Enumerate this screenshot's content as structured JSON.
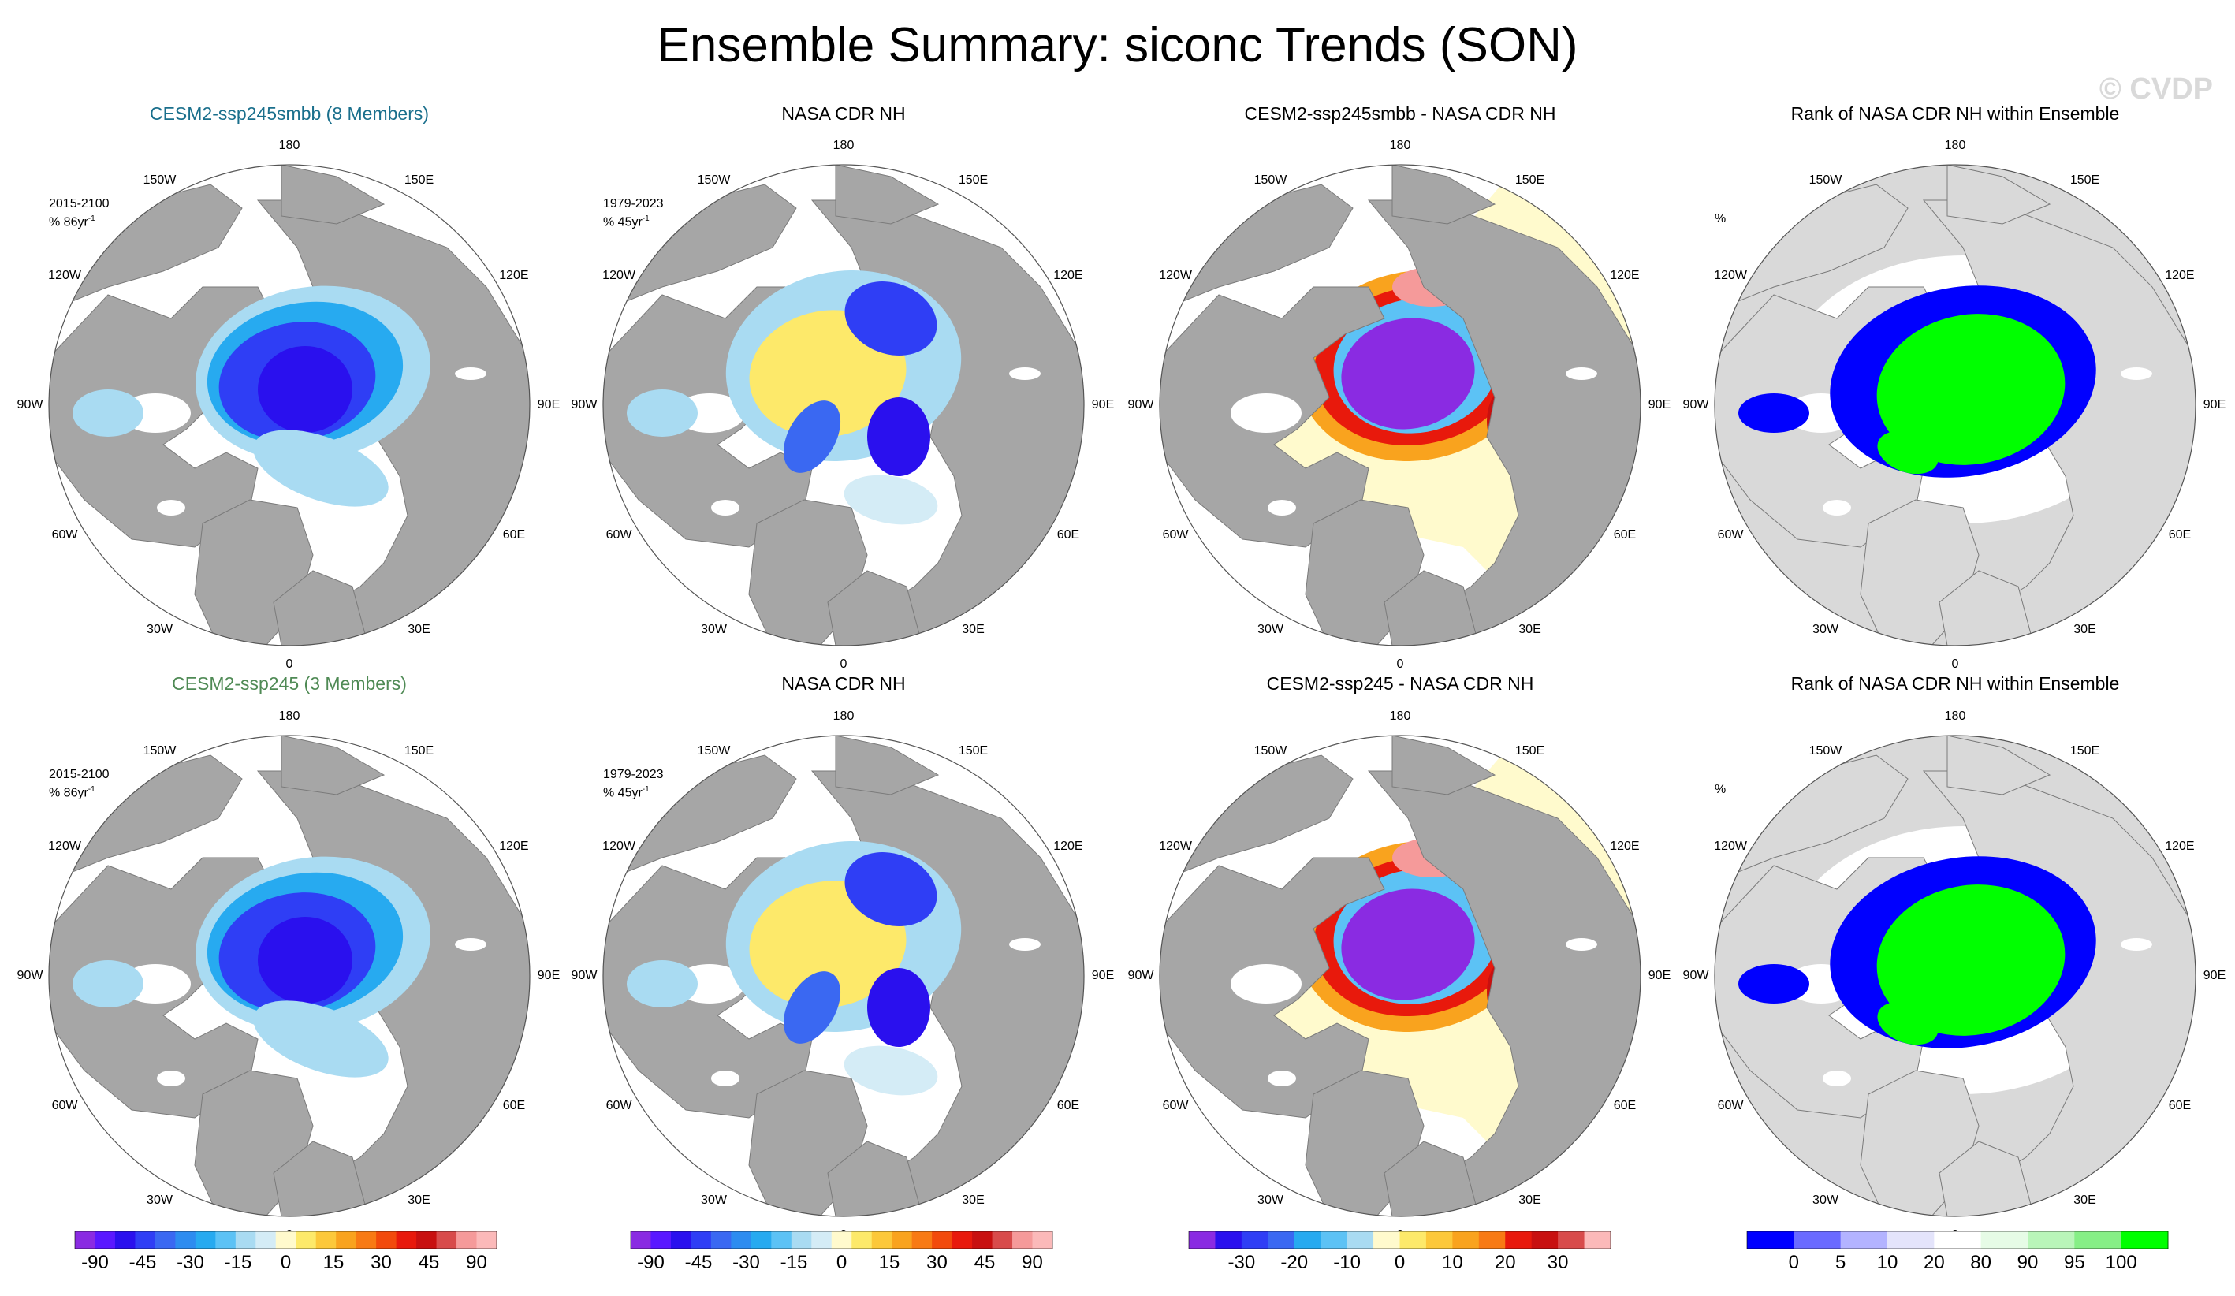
{
  "title": "Ensemble Summary: siconc Trends (SON)",
  "watermark": "© CVDP",
  "lon_labels": [
    "180",
    "150E",
    "120E",
    "90E",
    "60E",
    "30E",
    "0",
    "30W",
    "60W",
    "90W",
    "120W",
    "150W"
  ],
  "colors": {
    "land": "#a6a6a6",
    "rank_land": "#d9d9d9",
    "diverging": [
      "#8a2be2",
      "#5a18ff",
      "#2a10ee",
      "#2f3ef5",
      "#3a68f2",
      "#2d8cf0",
      "#27aaf0",
      "#5cc2f5",
      "#a9dbf2",
      "#d4ecf6",
      "#fffacd",
      "#fde96a",
      "#fcc83a",
      "#f9a31e",
      "#f87a14",
      "#f24a0c",
      "#e8190c",
      "#c81010",
      "#d84b4b",
      "#f59a9a",
      "#fbb9b9"
    ],
    "rank": [
      "#0000ff",
      "#6a6aff",
      "#b3b3ff",
      "#e4e4fb",
      "#ffffff",
      "#e6fbe6",
      "#b9f5b9",
      "#86ef86",
      "#00ff00"
    ]
  },
  "rows": [
    {
      "panels": [
        {
          "title": "CESM2-ssp245smbb (8 Members)",
          "title_color": "#1a6f8c",
          "kind": "model",
          "period": "2015-2100",
          "units": "% 86yr",
          "units_exp": "-1"
        },
        {
          "title": "NASA CDR NH",
          "title_color": "#000000",
          "kind": "obs",
          "period": "1979-2023",
          "units": "% 45yr",
          "units_exp": "-1"
        },
        {
          "title": "CESM2-ssp245smbb - NASA CDR NH",
          "title_color": "#000000",
          "kind": "diff"
        },
        {
          "title": "Rank of NASA CDR NH within Ensemble",
          "title_color": "#000000",
          "kind": "rank",
          "units": "%"
        }
      ]
    },
    {
      "panels": [
        {
          "title": "CESM2-ssp245 (3 Members)",
          "title_color": "#4f8a55",
          "kind": "model",
          "period": "2015-2100",
          "units": "% 86yr",
          "units_exp": "-1"
        },
        {
          "title": "NASA CDR NH",
          "title_color": "#000000",
          "kind": "obs",
          "period": "1979-2023",
          "units": "% 45yr",
          "units_exp": "-1"
        },
        {
          "title": "CESM2-ssp245 - NASA CDR NH",
          "title_color": "#000000",
          "kind": "diff"
        },
        {
          "title": "Rank of NASA CDR NH within Ensemble",
          "title_color": "#000000",
          "kind": "rank",
          "units": "%"
        }
      ]
    }
  ],
  "colorbars": [
    {
      "kind": "trend",
      "ticks": [
        "-90",
        "-45",
        "-30",
        "-15",
        "0",
        "15",
        "30",
        "45",
        "90"
      ]
    },
    {
      "kind": "trend",
      "ticks": [
        "-90",
        "-45",
        "-30",
        "-15",
        "0",
        "15",
        "30",
        "45",
        "90"
      ]
    },
    {
      "kind": "diff",
      "ticks": [
        "-30",
        "-20",
        "-10",
        "0",
        "10",
        "20",
        "30"
      ]
    },
    {
      "kind": "rank",
      "ticks": [
        "0",
        "5",
        "10",
        "20",
        "80",
        "90",
        "95",
        "100"
      ]
    }
  ],
  "chart_data": {
    "type": "heatmap",
    "projection": "north polar stereographic",
    "description_units": "sea ice concentration trend (%)",
    "legend_placement": "bottom",
    "trend_levels": [
      -90,
      -45,
      -30,
      -15,
      0,
      15,
      30,
      45,
      90
    ],
    "diff_levels": [
      -30,
      -20,
      -10,
      0,
      10,
      20,
      30
    ],
    "rank_levels": [
      0,
      5,
      10,
      20,
      80,
      90,
      95,
      100
    ]
  }
}
